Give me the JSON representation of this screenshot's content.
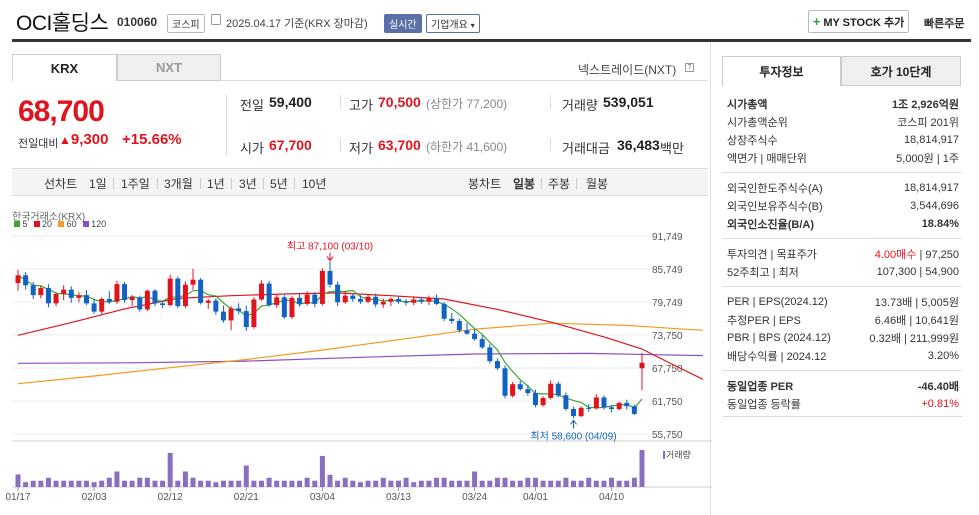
{
  "header": {
    "company_name": "OCI홀딩스",
    "stock_code": "010060",
    "market_tag": "코스피",
    "date_info": "2025.04.17 기준(KRX 장마감)",
    "realtime_tag": "실시간",
    "overview_label": "기업개요",
    "mystock_label": "MY STOCK 추가",
    "quick_order_label": "빠른주문"
  },
  "tabs": {
    "krx": "KRX",
    "nxt": "NXT",
    "nextrade": "넥스트레이드(NXT)"
  },
  "price": {
    "current": "68,700",
    "change_label": "전일대비",
    "change_value": "9,300",
    "change_pct": "+15.66%"
  },
  "quote": {
    "prev_label": "전일",
    "prev_value": "59,400",
    "high_label": "고가",
    "high_value": "70,500",
    "high_limit": "(상한가 77,200)",
    "volume_label": "거래량",
    "volume_value": "539,051",
    "open_label": "시가",
    "open_value": "67,700",
    "low_label": "저가",
    "low_value": "63,700",
    "low_limit": "(하한가 41,600)",
    "amount_label": "거래대금",
    "amount_value": "36,483",
    "amount_unit": "백만"
  },
  "periods": {
    "line_label": "선차트",
    "items": [
      "1일",
      "1주일",
      "3개월",
      "1년",
      "3년",
      "5년",
      "10년"
    ],
    "candle_label": "봉차트",
    "candle_items": [
      "일봉",
      "주봉",
      "월봉"
    ]
  },
  "chart_data": {
    "type": "candlestick",
    "source_label": "한국거래소(KRX)",
    "legend": [
      {
        "name": "5",
        "color": "#3fa535"
      },
      {
        "name": "20",
        "color": "#e0141e"
      },
      {
        "name": "60",
        "color": "#f39a1e"
      },
      {
        "name": "120",
        "color": "#8a4fc7"
      }
    ],
    "y_ticks": [
      "91,749",
      "85,749",
      "79,749",
      "73,750",
      "67,750",
      "61,750",
      "55,750"
    ],
    "ylim": [
      55750,
      91749
    ],
    "x_ticks": [
      "01/17",
      "02/03",
      "02/12",
      "02/21",
      "03/04",
      "03/13",
      "03/24",
      "04/01",
      "04/10"
    ],
    "x_tick_index": [
      0,
      10,
      20,
      30,
      40,
      50,
      60,
      68,
      78
    ],
    "high_annotation": "최고 87,100 (03/10)",
    "low_annotation": "최저 58,600 (04/09)",
    "volume_label": "거래량",
    "candles": [
      [
        83200,
        85600,
        81800,
        84600
      ],
      [
        84600,
        85200,
        82000,
        82800
      ],
      [
        82800,
        83400,
        80300,
        81000
      ],
      [
        81000,
        82800,
        80400,
        82300
      ],
      [
        82300,
        83000,
        78800,
        79500
      ],
      [
        79500,
        81500,
        79000,
        81200
      ],
      [
        81200,
        82800,
        80100,
        82000
      ],
      [
        82000,
        82600,
        79600,
        80500
      ],
      [
        80500,
        81500,
        79700,
        81000
      ],
      [
        81000,
        81900,
        79200,
        79500
      ],
      [
        79500,
        80400,
        77600,
        78000
      ],
      [
        78000,
        80600,
        77600,
        80300
      ],
      [
        80300,
        81700,
        79400,
        79800
      ],
      [
        79800,
        83600,
        79400,
        83000
      ],
      [
        83000,
        83400,
        79600,
        80100
      ],
      [
        80100,
        81000,
        79000,
        80600
      ],
      [
        80600,
        80900,
        78000,
        78400
      ],
      [
        78400,
        82000,
        78100,
        81800
      ],
      [
        81800,
        82100,
        79000,
        79500
      ],
      [
        79500,
        80000,
        78600,
        79200
      ],
      [
        79200,
        84700,
        79000,
        84000
      ],
      [
        84000,
        84400,
        78600,
        79000
      ],
      [
        79000,
        83500,
        78600,
        82900
      ],
      [
        82900,
        85800,
        82000,
        83800
      ],
      [
        83800,
        84100,
        79300,
        79600
      ],
      [
        79600,
        80300,
        78500,
        80000
      ],
      [
        80000,
        80400,
        77400,
        78000
      ],
      [
        78000,
        79100,
        76000,
        76400
      ],
      [
        76400,
        79000,
        74600,
        78600
      ],
      [
        78600,
        79500,
        77500,
        78100
      ],
      [
        78100,
        79100,
        74500,
        75200
      ],
      [
        75200,
        80600,
        74900,
        80200
      ],
      [
        80200,
        83700,
        80000,
        83100
      ],
      [
        83100,
        83600,
        78900,
        79200
      ],
      [
        79200,
        81000,
        78700,
        80600
      ],
      [
        80600,
        81000,
        76700,
        77000
      ],
      [
        77000,
        80800,
        76700,
        80500
      ],
      [
        80500,
        81400,
        78900,
        79400
      ],
      [
        79400,
        81700,
        79100,
        81100
      ],
      [
        81100,
        81500,
        78800,
        79400
      ],
      [
        79400,
        85900,
        79100,
        85400
      ],
      [
        85400,
        87100,
        82400,
        82900
      ],
      [
        82900,
        83500,
        79000,
        79700
      ],
      [
        79700,
        81700,
        79400,
        80900
      ],
      [
        80900,
        81300,
        79800,
        80300
      ],
      [
        80300,
        81000,
        79400,
        79800
      ],
      [
        79800,
        81100,
        79500,
        80700
      ],
      [
        80700,
        81300,
        78800,
        79300
      ],
      [
        79300,
        80400,
        78700,
        79800
      ],
      [
        79800,
        80600,
        79000,
        80300
      ],
      [
        80300,
        80800,
        79400,
        79800
      ],
      [
        79800,
        80300,
        79100,
        79600
      ],
      [
        79600,
        80800,
        79200,
        80200
      ],
      [
        80200,
        80700,
        79400,
        79800
      ],
      [
        79800,
        80900,
        79200,
        80500
      ],
      [
        80500,
        81100,
        79200,
        79400
      ],
      [
        79400,
        79800,
        76300,
        76700
      ],
      [
        76700,
        77800,
        75800,
        76300
      ],
      [
        76300,
        76700,
        74200,
        74600
      ],
      [
        74600,
        75900,
        73800,
        74000
      ],
      [
        74000,
        74800,
        72700,
        73000
      ],
      [
        73000,
        73700,
        71200,
        71500
      ],
      [
        71500,
        72100,
        68600,
        69000
      ],
      [
        69000,
        69500,
        67400,
        67700
      ],
      [
        67700,
        68200,
        62200,
        62700
      ],
      [
        62700,
        65200,
        62400,
        64800
      ],
      [
        64800,
        65400,
        63600,
        63900
      ],
      [
        63900,
        64700,
        62700,
        63200
      ],
      [
        63200,
        63800,
        60600,
        61000
      ],
      [
        61000,
        62600,
        60700,
        62300
      ],
      [
        62300,
        65500,
        62000,
        64900
      ],
      [
        64900,
        65300,
        62400,
        62800
      ],
      [
        62800,
        63300,
        60000,
        60300
      ],
      [
        60300,
        60700,
        58600,
        59000
      ],
      [
        59000,
        60800,
        58800,
        60500
      ],
      [
        60500,
        61200,
        59800,
        60400
      ],
      [
        60400,
        63000,
        60200,
        62400
      ],
      [
        62400,
        62800,
        60200,
        60600
      ],
      [
        60600,
        61000,
        59700,
        60300
      ],
      [
        60300,
        61600,
        60000,
        61400
      ],
      [
        61400,
        62000,
        60200,
        60800
      ],
      [
        60800,
        61100,
        59200,
        59400
      ],
      [
        67700,
        70500,
        63700,
        68700
      ]
    ],
    "volumes": [
      0.34,
      0.13,
      0.17,
      0.17,
      0.25,
      0.17,
      0.17,
      0.17,
      0.17,
      0.17,
      0.13,
      0.17,
      0.25,
      0.42,
      0.17,
      0.17,
      0.25,
      0.25,
      0.17,
      0.17,
      0.92,
      0.17,
      0.42,
      0.25,
      0.17,
      0.17,
      0.13,
      0.17,
      0.17,
      0.17,
      0.58,
      0.17,
      0.17,
      0.25,
      0.17,
      0.17,
      0.17,
      0.17,
      0.25,
      0.17,
      0.84,
      0.33,
      0.17,
      0.25,
      0.17,
      0.13,
      0.17,
      0.17,
      0.25,
      0.17,
      0.17,
      0.25,
      0.13,
      0.17,
      0.17,
      0.25,
      0.25,
      0.17,
      0.17,
      0.17,
      0.42,
      0.17,
      0.17,
      0.25,
      0.25,
      0.17,
      0.17,
      0.25,
      0.25,
      0.17,
      0.17,
      0.17,
      0.25,
      0.17,
      0.17,
      0.25,
      0.17,
      0.17,
      0.25,
      0.17,
      0.17,
      0.25,
      1.0
    ],
    "ma20": [
      [
        0,
        73700
      ],
      [
        7,
        76000
      ],
      [
        14,
        78500
      ],
      [
        21,
        80400
      ],
      [
        28,
        80900
      ],
      [
        35,
        81200
      ],
      [
        42,
        81400
      ],
      [
        49,
        80900
      ],
      [
        56,
        80300
      ],
      [
        63,
        78400
      ],
      [
        70,
        76100
      ],
      [
        77,
        73400
      ],
      [
        82,
        71200
      ],
      [
        86,
        68400
      ],
      [
        90,
        65700
      ]
    ],
    "ma60": [
      [
        0,
        64900
      ],
      [
        10,
        66300
      ],
      [
        20,
        67800
      ],
      [
        30,
        69300
      ],
      [
        40,
        71000
      ],
      [
        50,
        72900
      ],
      [
        60,
        74800
      ],
      [
        70,
        75900
      ],
      [
        80,
        75500
      ],
      [
        90,
        74600
      ]
    ],
    "ma120": [
      [
        0,
        68600
      ],
      [
        15,
        68700
      ],
      [
        30,
        69000
      ],
      [
        45,
        69700
      ],
      [
        60,
        70300
      ],
      [
        75,
        70400
      ],
      [
        90,
        70000
      ]
    ]
  },
  "invest": {
    "tab_invest": "투자정보",
    "tab_hoga": "호가 10단계",
    "rows_a": [
      {
        "label": "시가총액",
        "value": "1조 2,926억원",
        "bold": true
      },
      {
        "label": "시가총액순위",
        "value": "코스피 201위"
      },
      {
        "label": "상장주식수",
        "value": "18,814,917"
      },
      {
        "label": "액면가 | 매매단위",
        "value": "5,000원 | 1주"
      }
    ],
    "rows_b": [
      {
        "label": "외국인한도주식수(A)",
        "value": "18,814,917"
      },
      {
        "label": "외국인보유주식수(B)",
        "value": "3,544,696"
      },
      {
        "label": "외국인소진율(B/A)",
        "value": "18.84%",
        "bold": true
      }
    ],
    "rows_c": [
      {
        "label": "투자의견 | 목표주가",
        "value_red": "4.00매수",
        "value": "97,250"
      },
      {
        "label": "52주최고 | 최저",
        "value": "107,300 | 54,900"
      }
    ],
    "rows_d": [
      {
        "label": "PER | EPS(2024.12)",
        "value": "13.73배 | 5,005원"
      },
      {
        "label": "추정PER | EPS",
        "value": "6.46배 | 10,641원"
      },
      {
        "label": "PBR | BPS (2024.12)",
        "value": "0.32배 | 211,999원"
      },
      {
        "label": "배당수익률 | 2024.12",
        "value": "3.20%"
      }
    ],
    "rows_e": [
      {
        "label": "동일업종 PER",
        "value": "-46.40배",
        "bold": true
      },
      {
        "label": "동일업종 등락률",
        "value": "+0.81%",
        "red": true
      }
    ]
  }
}
